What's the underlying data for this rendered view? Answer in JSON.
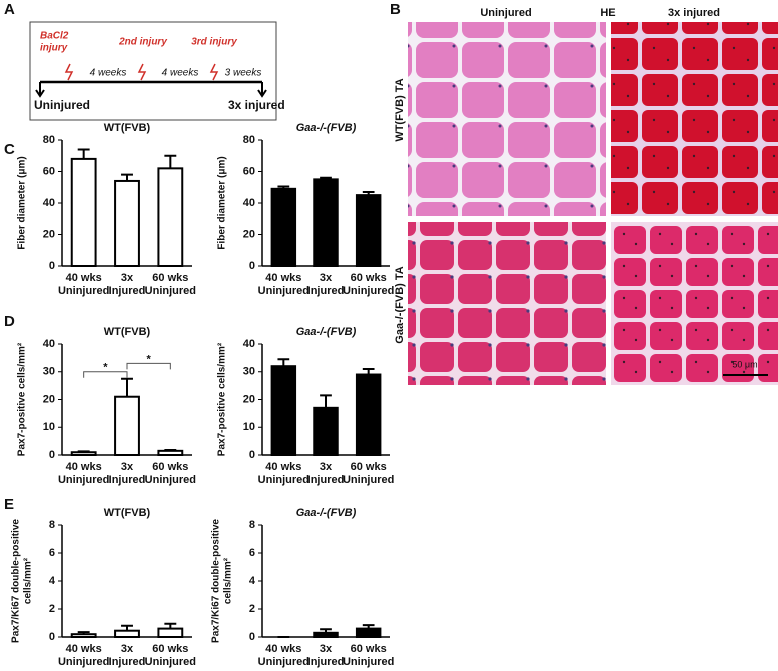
{
  "panel_labels": [
    "A",
    "B",
    "C",
    "D",
    "E"
  ],
  "panel_a": {
    "injuries": [
      "BaCl2",
      "injury",
      "2nd injury",
      "3rd injury"
    ],
    "intervals": [
      "4 weeks",
      "4 weeks",
      "3 weeks"
    ],
    "start": "Uninjured",
    "end": "3x injured"
  },
  "panel_b": {
    "columns": [
      "Uninjured",
      "HE",
      "3x injured"
    ],
    "rows": [
      "WT(FVB) TA",
      "Gaa-/-(FVB) TA"
    ],
    "scale_bar": "50 μm"
  },
  "chart_data": [
    {
      "type": "bar",
      "title": "WT(FVB)",
      "y_label": [
        "Fiber diameter (μm)"
      ],
      "categories": [
        [
          "40 wks",
          "Uninjured"
        ],
        [
          "3x",
          "Injured"
        ],
        [
          "60 wks",
          "Uninjured"
        ]
      ],
      "series": [
        {
          "color": "#ffffff",
          "values": [
            68,
            54,
            62
          ],
          "errors": [
            6,
            4,
            8
          ]
        }
      ],
      "ylim": [
        0,
        80
      ],
      "yticks": [
        0,
        20,
        40,
        60,
        80
      ]
    },
    {
      "type": "bar",
      "title": "Gaa-/-(FVB)",
      "y_label": [
        "Fiber diameter (μm)"
      ],
      "categories": [
        [
          "40 wks",
          "Uninjured"
        ],
        [
          "3x",
          "Injured"
        ],
        [
          "60 wks",
          "Uninjured"
        ]
      ],
      "series": [
        {
          "color": "#000000",
          "values": [
            49,
            55,
            45
          ],
          "errors": [
            1.5,
            1,
            2
          ]
        }
      ],
      "ylim": [
        0,
        80
      ],
      "yticks": [
        0,
        20,
        40,
        60,
        80
      ]
    },
    {
      "type": "bar",
      "title": "WT(FVB)",
      "y_label": [
        "Pax7-positive cells/mm²"
      ],
      "categories": [
        [
          "40 wks",
          "Uninjured"
        ],
        [
          "3x",
          "Injured"
        ],
        [
          "60 wks",
          "Uninjured"
        ]
      ],
      "series": [
        {
          "color": "#ffffff",
          "values": [
            1,
            21,
            1.5
          ],
          "errors": [
            0.3,
            6.5,
            0.3
          ]
        }
      ],
      "ylim": [
        0,
        40
      ],
      "yticks": [
        0,
        10,
        20,
        30,
        40
      ],
      "annotations": [
        "*",
        "*"
      ]
    },
    {
      "type": "bar",
      "title": "Gaa-/-(FVB)",
      "y_label": [
        "Pax7-positive cells/mm²"
      ],
      "categories": [
        [
          "40 wks",
          "Uninjured"
        ],
        [
          "3x",
          "Injured"
        ],
        [
          "60 wks",
          "Uninjured"
        ]
      ],
      "series": [
        {
          "color": "#000000",
          "values": [
            32,
            17,
            29
          ],
          "errors": [
            2.5,
            4.5,
            2
          ]
        }
      ],
      "ylim": [
        0,
        40
      ],
      "yticks": [
        0,
        10,
        20,
        30,
        40
      ]
    },
    {
      "type": "bar",
      "title": "WT(FVB)",
      "y_label": [
        "Pax7/Ki67 double-positive",
        "cells/mm²"
      ],
      "categories": [
        [
          "40 wks",
          "Uninjured"
        ],
        [
          "3x",
          "Injured"
        ],
        [
          "60 wks",
          "Uninjured"
        ]
      ],
      "series": [
        {
          "color": "#ffffff",
          "values": [
            0.2,
            0.45,
            0.6
          ],
          "errors": [
            0.15,
            0.35,
            0.35
          ]
        }
      ],
      "ylim": [
        0,
        8
      ],
      "yticks": [
        0,
        2,
        4,
        6,
        8
      ]
    },
    {
      "type": "bar",
      "title": "Gaa-/-(FVB)",
      "y_label": [
        "Pax7/Ki67 double-positive",
        "cells/mm²"
      ],
      "categories": [
        [
          "40 wks",
          "Uninjured"
        ],
        [
          "3x",
          "Injured"
        ],
        [
          "60 wks",
          "Uninjured"
        ]
      ],
      "series": [
        {
          "color": "#000000",
          "values": [
            0,
            0.3,
            0.6
          ],
          "errors": [
            0,
            0.25,
            0.25
          ]
        }
      ],
      "ylim": [
        0,
        8
      ],
      "yticks": [
        0,
        2,
        4,
        6,
        8
      ]
    }
  ]
}
